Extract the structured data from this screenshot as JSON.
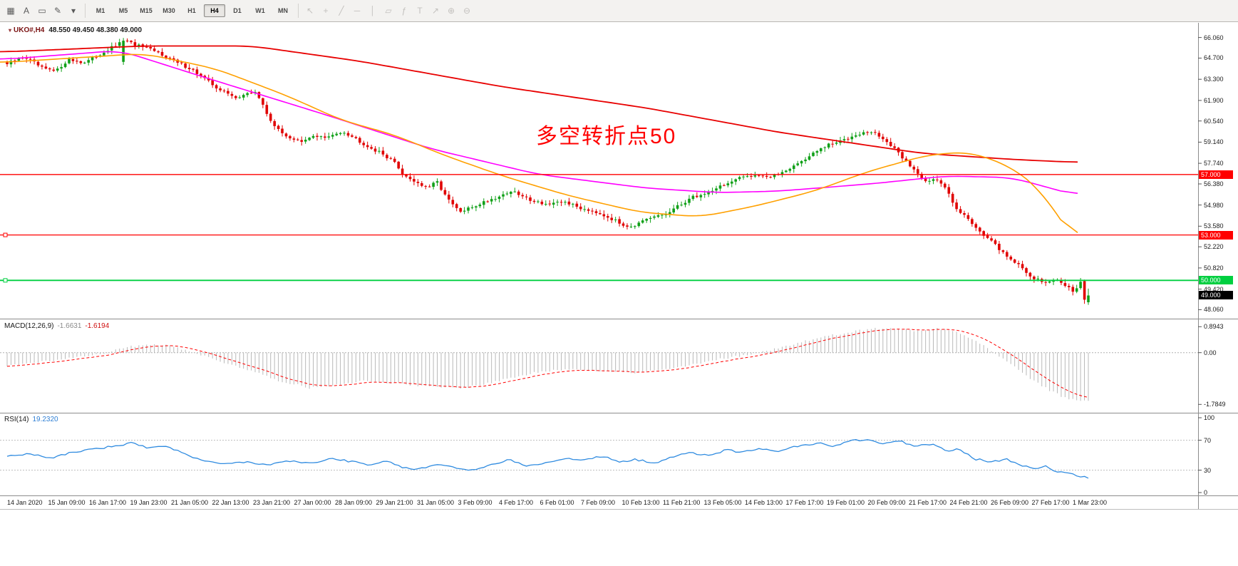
{
  "toolbar": {
    "icons_left": [
      {
        "name": "indicators-grid-icon",
        "glyph": "▦"
      },
      {
        "name": "text-tool-icon",
        "glyph": "A"
      },
      {
        "name": "template-icon",
        "glyph": "▭"
      },
      {
        "name": "draw-tool-icon",
        "glyph": "✎"
      },
      {
        "name": "draw-tool-dropdown-icon",
        "glyph": "▾"
      }
    ],
    "timeframes": [
      "M1",
      "M5",
      "M15",
      "M30",
      "H1",
      "H4",
      "D1",
      "W1",
      "MN"
    ],
    "active_timeframe": "H4",
    "icons_right": [
      {
        "name": "cursor-icon",
        "glyph": "↖"
      },
      {
        "name": "crosshair-icon",
        "glyph": "+"
      },
      {
        "name": "trendline-icon",
        "glyph": "╱"
      },
      {
        "name": "horizontal-line-icon",
        "glyph": "─"
      },
      {
        "name": "vertical-line-icon",
        "glyph": "│"
      },
      {
        "name": "channel-icon",
        "glyph": "▱"
      },
      {
        "name": "fibonacci-icon",
        "glyph": "ƒ"
      },
      {
        "name": "text-label-icon",
        "glyph": "T"
      },
      {
        "name": "arrow-tool-icon",
        "glyph": "↗"
      },
      {
        "name": "zoom-in-icon",
        "glyph": "⊕"
      },
      {
        "name": "zoom-out-icon",
        "glyph": "⊖"
      }
    ]
  },
  "chart": {
    "symbol": "UKO#,H4",
    "ohlc": "48.550 49.450 48.380 49.000",
    "annotation": {
      "text": "多空转折点50",
      "color": "#ff0000"
    },
    "price_axis": [
      "66.060",
      "64.700",
      "63.300",
      "61.900",
      "60.540",
      "59.140",
      "57.740",
      "56.380",
      "54.980",
      "53.580",
      "52.220",
      "50.820",
      "49.420",
      "48.060"
    ],
    "hlines": [
      {
        "label": "57.000",
        "value": 57.0,
        "color": "#ff0000",
        "anchor": false
      },
      {
        "label": "53.000",
        "value": 53.0,
        "color": "#ff0000",
        "anchor": true
      },
      {
        "label": "50.000",
        "value": 50.0,
        "color": "#00cf40",
        "anchor": true
      }
    ],
    "current_price": {
      "label": "49.000",
      "value": 49.0,
      "bg": "#000000",
      "fg": "#ffffff"
    },
    "colors": {
      "up": "#10a018",
      "down": "#e00000",
      "ma_slow": "#e80000",
      "ma_mid": "#ff00ff",
      "ma_fast": "#ffa000"
    }
  },
  "macd": {
    "name": "MACD(12,26,9)",
    "value_main": "-1.6631",
    "value_signal": "-1.6194",
    "axis": [
      "0.8943",
      "0.00",
      "-1.7849"
    ],
    "colors": {
      "hist": "#b8b8b8",
      "signal": "#ff0000"
    }
  },
  "rsi": {
    "name": "RSI(14)",
    "value": "19.2320",
    "axis": [
      "100",
      "70",
      "30",
      "0"
    ],
    "levels": [
      70,
      30
    ],
    "color": "#2f8be0"
  },
  "time_axis": [
    "14 Jan 2020",
    "15 Jan 09:00",
    "16 Jan 17:00",
    "19 Jan 23:00",
    "21 Jan 05:00",
    "22 Jan 13:00",
    "23 Jan 21:00",
    "27 Jan 00:00",
    "28 Jan 09:00",
    "29 Jan 21:00",
    "31 Jan 05:00",
    "3 Feb 09:00",
    "4 Feb 17:00",
    "6 Feb 01:00",
    "7 Feb 09:00",
    "10 Feb 13:00",
    "11 Feb 21:00",
    "13 Feb 05:00",
    "14 Feb 13:00",
    "17 Feb 17:00",
    "19 Feb 01:00",
    "20 Feb 09:00",
    "21 Feb 17:00",
    "24 Feb 21:00",
    "26 Feb 09:00",
    "27 Feb 17:00",
    "1 Mar 23:00"
  ],
  "chart_data": {
    "type": "candlestick",
    "symbol": "UKO#,H4",
    "candle_count": 280,
    "ylim": [
      47.75,
      66.75
    ],
    "macd_ylim": [
      -1.95,
      1.05
    ],
    "rsi_ylim": [
      0,
      100
    ],
    "price_path": [
      [
        0,
        64.3
      ],
      [
        0.016,
        64.8
      ],
      [
        0.033,
        64.0
      ],
      [
        0.045,
        63.8
      ],
      [
        0.056,
        64.6
      ],
      [
        0.072,
        64.4
      ],
      [
        0.092,
        65.2
      ],
      [
        0.108,
        65.8
      ],
      [
        0.118,
        65.6
      ],
      [
        0.13,
        65.3
      ],
      [
        0.145,
        64.9
      ],
      [
        0.157,
        64.4
      ],
      [
        0.17,
        64.0
      ],
      [
        0.183,
        63.3
      ],
      [
        0.197,
        62.6
      ],
      [
        0.21,
        62.1
      ],
      [
        0.222,
        62.3
      ],
      [
        0.23,
        62.5
      ],
      [
        0.241,
        60.9
      ],
      [
        0.252,
        59.8
      ],
      [
        0.263,
        59.4
      ],
      [
        0.273,
        59.1
      ],
      [
        0.284,
        59.6
      ],
      [
        0.296,
        59.4
      ],
      [
        0.31,
        59.9
      ],
      [
        0.322,
        59.4
      ],
      [
        0.333,
        58.9
      ],
      [
        0.343,
        58.5
      ],
      [
        0.356,
        58.0
      ],
      [
        0.366,
        57.0
      ],
      [
        0.376,
        56.6
      ],
      [
        0.388,
        56.1
      ],
      [
        0.398,
        56.5
      ],
      [
        0.408,
        55.3
      ],
      [
        0.419,
        54.5
      ],
      [
        0.429,
        54.8
      ],
      [
        0.441,
        55.2
      ],
      [
        0.453,
        55.5
      ],
      [
        0.466,
        55.9
      ],
      [
        0.478,
        55.5
      ],
      [
        0.49,
        55.2
      ],
      [
        0.503,
        55.0
      ],
      [
        0.516,
        55.2
      ],
      [
        0.529,
        54.8
      ],
      [
        0.543,
        54.6
      ],
      [
        0.556,
        54.2
      ],
      [
        0.568,
        53.7
      ],
      [
        0.579,
        53.6
      ],
      [
        0.589,
        53.9
      ],
      [
        0.599,
        54.2
      ],
      [
        0.61,
        54.4
      ],
      [
        0.621,
        54.9
      ],
      [
        0.633,
        55.5
      ],
      [
        0.645,
        55.7
      ],
      [
        0.658,
        56.2
      ],
      [
        0.67,
        56.5
      ],
      [
        0.683,
        56.9
      ],
      [
        0.695,
        57.0
      ],
      [
        0.707,
        56.8
      ],
      [
        0.72,
        57.3
      ],
      [
        0.733,
        57.8
      ],
      [
        0.746,
        58.4
      ],
      [
        0.758,
        58.9
      ],
      [
        0.771,
        59.2
      ],
      [
        0.785,
        59.7
      ],
      [
        0.8,
        59.8
      ],
      [
        0.81,
        59.4
      ],
      [
        0.82,
        58.7
      ],
      [
        0.83,
        58.0
      ],
      [
        0.84,
        57.2
      ],
      [
        0.85,
        56.6
      ],
      [
        0.858,
        56.7
      ],
      [
        0.868,
        56.1
      ],
      [
        0.878,
        54.8
      ],
      [
        0.888,
        54.1
      ],
      [
        0.898,
        53.4
      ],
      [
        0.908,
        52.7
      ],
      [
        0.917,
        52.1
      ],
      [
        0.927,
        51.5
      ],
      [
        0.937,
        50.9
      ],
      [
        0.946,
        50.3
      ],
      [
        0.955,
        50.0
      ],
      [
        0.963,
        49.8
      ],
      [
        0.972,
        50.1
      ],
      [
        0.98,
        49.6
      ],
      [
        0.987,
        49.3
      ],
      [
        0.993,
        49.9
      ],
      [
        1.0,
        49.0
      ]
    ],
    "spike_candle": {
      "frac": 0.108,
      "open": 64.45,
      "high": 66.03,
      "low": 64.25,
      "close": 65.85
    },
    "penultimate_candle": {
      "open": 49.95,
      "high": 50.05,
      "low": 48.45,
      "close": 48.72
    },
    "last_candle": {
      "open": 48.55,
      "high": 49.45,
      "low": 48.38,
      "close": 49.0
    },
    "ma_slow": [
      [
        0,
        65.1
      ],
      [
        0.12,
        65.5
      ],
      [
        0.21,
        65.5
      ],
      [
        0.3,
        64.5
      ],
      [
        0.42,
        62.8
      ],
      [
        0.54,
        61.4
      ],
      [
        0.65,
        59.8
      ],
      [
        0.77,
        58.4
      ],
      [
        0.845,
        58.0
      ],
      [
        0.9,
        57.8
      ]
    ],
    "ma_mid": [
      [
        0,
        64.6
      ],
      [
        0.1,
        65.2
      ],
      [
        0.18,
        63.2
      ],
      [
        0.27,
        61.0
      ],
      [
        0.36,
        58.7
      ],
      [
        0.45,
        57.0
      ],
      [
        0.54,
        56.1
      ],
      [
        0.6,
        55.8
      ],
      [
        0.65,
        55.9
      ],
      [
        0.73,
        56.4
      ],
      [
        0.79,
        56.9
      ],
      [
        0.845,
        56.8
      ],
      [
        0.9,
        55.6
      ]
    ],
    "ma_fast": [
      [
        0,
        64.4
      ],
      [
        0.12,
        65.0
      ],
      [
        0.18,
        64.0
      ],
      [
        0.24,
        62.2
      ],
      [
        0.285,
        60.6
      ],
      [
        0.33,
        59.6
      ],
      [
        0.37,
        58.3
      ],
      [
        0.42,
        56.9
      ],
      [
        0.475,
        55.6
      ],
      [
        0.535,
        54.5
      ],
      [
        0.585,
        54.2
      ],
      [
        0.63,
        54.9
      ],
      [
        0.68,
        55.9
      ],
      [
        0.725,
        57.2
      ],
      [
        0.775,
        58.3
      ],
      [
        0.81,
        58.5
      ],
      [
        0.845,
        57.5
      ],
      [
        0.87,
        55.9
      ],
      [
        0.9,
        52.3
      ]
    ],
    "macd_path": [
      [
        0,
        -0.45
      ],
      [
        0.03,
        -0.32
      ],
      [
        0.06,
        -0.18
      ],
      [
        0.09,
        -0.02
      ],
      [
        0.11,
        0.18
      ],
      [
        0.13,
        0.3
      ],
      [
        0.15,
        0.24
      ],
      [
        0.17,
        0.05
      ],
      [
        0.19,
        -0.22
      ],
      [
        0.22,
        -0.55
      ],
      [
        0.25,
        -0.95
      ],
      [
        0.28,
        -1.22
      ],
      [
        0.3,
        -1.12
      ],
      [
        0.33,
        -0.98
      ],
      [
        0.36,
        -1.05
      ],
      [
        0.39,
        -1.18
      ],
      [
        0.42,
        -1.22
      ],
      [
        0.44,
        -1.1
      ],
      [
        0.46,
        -0.92
      ],
      [
        0.49,
        -0.68
      ],
      [
        0.52,
        -0.56
      ],
      [
        0.55,
        -0.62
      ],
      [
        0.58,
        -0.7
      ],
      [
        0.61,
        -0.58
      ],
      [
        0.64,
        -0.38
      ],
      [
        0.66,
        -0.22
      ],
      [
        0.68,
        -0.1
      ],
      [
        0.7,
        0.04
      ],
      [
        0.72,
        0.22
      ],
      [
        0.74,
        0.42
      ],
      [
        0.76,
        0.58
      ],
      [
        0.78,
        0.72
      ],
      [
        0.8,
        0.82
      ],
      [
        0.815,
        0.86
      ],
      [
        0.83,
        0.8
      ],
      [
        0.845,
        0.74
      ],
      [
        0.86,
        0.84
      ],
      [
        0.875,
        0.78
      ],
      [
        0.885,
        0.62
      ],
      [
        0.895,
        0.42
      ],
      [
        0.905,
        0.2
      ],
      [
        0.915,
        -0.05
      ],
      [
        0.925,
        -0.32
      ],
      [
        0.935,
        -0.58
      ],
      [
        0.945,
        -0.85
      ],
      [
        0.955,
        -1.1
      ],
      [
        0.965,
        -1.32
      ],
      [
        0.975,
        -1.5
      ],
      [
        0.985,
        -1.62
      ],
      [
        1.0,
        -1.66
      ]
    ],
    "rsi_path": [
      [
        0,
        48
      ],
      [
        0.02,
        52
      ],
      [
        0.04,
        46
      ],
      [
        0.06,
        54
      ],
      [
        0.08,
        58
      ],
      [
        0.1,
        62
      ],
      [
        0.115,
        66
      ],
      [
        0.13,
        60
      ],
      [
        0.145,
        63
      ],
      [
        0.16,
        54
      ],
      [
        0.18,
        42
      ],
      [
        0.2,
        38
      ],
      [
        0.22,
        41
      ],
      [
        0.24,
        37
      ],
      [
        0.26,
        42
      ],
      [
        0.285,
        39
      ],
      [
        0.3,
        46
      ],
      [
        0.32,
        41
      ],
      [
        0.335,
        36
      ],
      [
        0.35,
        42
      ],
      [
        0.365,
        34
      ],
      [
        0.38,
        31
      ],
      [
        0.4,
        38
      ],
      [
        0.415,
        33
      ],
      [
        0.43,
        30
      ],
      [
        0.45,
        38
      ],
      [
        0.465,
        44
      ],
      [
        0.48,
        36
      ],
      [
        0.5,
        40
      ],
      [
        0.52,
        46
      ],
      [
        0.535,
        43
      ],
      [
        0.55,
        49
      ],
      [
        0.565,
        41
      ],
      [
        0.58,
        44
      ],
      [
        0.6,
        40
      ],
      [
        0.615,
        47
      ],
      [
        0.63,
        53
      ],
      [
        0.65,
        50
      ],
      [
        0.665,
        57
      ],
      [
        0.68,
        54
      ],
      [
        0.7,
        59
      ],
      [
        0.715,
        55
      ],
      [
        0.73,
        62
      ],
      [
        0.75,
        66
      ],
      [
        0.765,
        62
      ],
      [
        0.78,
        69
      ],
      [
        0.795,
        71
      ],
      [
        0.81,
        65
      ],
      [
        0.825,
        69
      ],
      [
        0.84,
        62
      ],
      [
        0.855,
        65
      ],
      [
        0.87,
        55
      ],
      [
        0.88,
        58
      ],
      [
        0.895,
        45
      ],
      [
        0.91,
        41
      ],
      [
        0.925,
        44
      ],
      [
        0.94,
        36
      ],
      [
        0.95,
        32
      ],
      [
        0.96,
        35
      ],
      [
        0.97,
        29
      ],
      [
        0.98,
        26
      ],
      [
        0.99,
        23
      ],
      [
        1.0,
        19.23
      ]
    ]
  }
}
